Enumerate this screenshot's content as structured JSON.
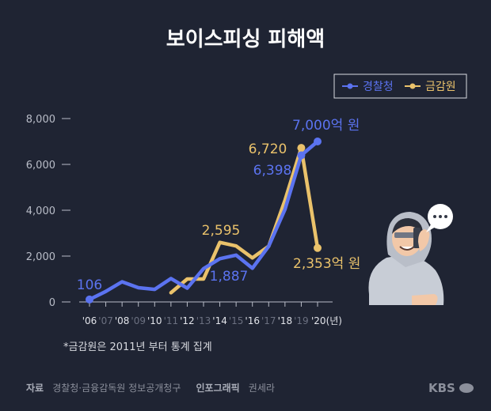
{
  "title": "보이스피싱 피해액",
  "legend": {
    "police": "경찰청",
    "fss": "금감원"
  },
  "colors": {
    "background": "#1f2433",
    "police": "#5b73f0",
    "fss": "#eac26b",
    "axis": "#b9bdc8"
  },
  "annotations": {
    "police_2006": "106",
    "police_2014": "1,887",
    "police_2019": "6,398",
    "police_2020": "7,000억 원",
    "fss_2014": "2,595",
    "fss_2019": "6,720",
    "fss_2020": "2,353억 원"
  },
  "note": "*금감원은 2011년 부터 통계 집계",
  "footer": {
    "source_label": "자료",
    "source": "경찰청·금융감독원 정보공개청구",
    "graphic_label": "인포그래픽",
    "graphic": "권세라",
    "brand": "KBS"
  },
  "chart_data": {
    "type": "line",
    "title": "보이스피싱 피해액",
    "x_tick_labels": [
      "'06",
      "'07",
      "'08",
      "'09",
      "'10",
      "'11",
      "'12",
      "'13",
      "'14",
      "'15",
      "'16",
      "'17",
      "'18",
      "'19",
      "'20(년)"
    ],
    "x": [
      2006,
      2007,
      2008,
      2009,
      2010,
      2011,
      2012,
      2013,
      2014,
      2015,
      2016,
      2017,
      2018,
      2019,
      2020
    ],
    "y_ticks": [
      "0",
      "2,000",
      "4,000",
      "6,000",
      "8,000"
    ],
    "ylim": [
      0,
      8000
    ],
    "legend_position": "top-right",
    "grid": false,
    "series": [
      {
        "name": "경찰청",
        "x": [
          2006,
          2007,
          2008,
          2009,
          2010,
          2011,
          2012,
          2013,
          2014,
          2015,
          2016,
          2017,
          2018,
          2019,
          2020
        ],
        "values": [
          106,
          460,
          880,
          620,
          550,
          1020,
          600,
          1450,
          1887,
          2040,
          1470,
          2430,
          4040,
          6398,
          7000
        ]
      },
      {
        "name": "금감원",
        "x": [
          2011,
          2012,
          2013,
          2014,
          2015,
          2016,
          2017,
          2018,
          2019,
          2020
        ],
        "values": [
          400,
          1000,
          1000,
          2595,
          2440,
          1920,
          2430,
          4440,
          6720,
          2353
        ]
      }
    ]
  }
}
